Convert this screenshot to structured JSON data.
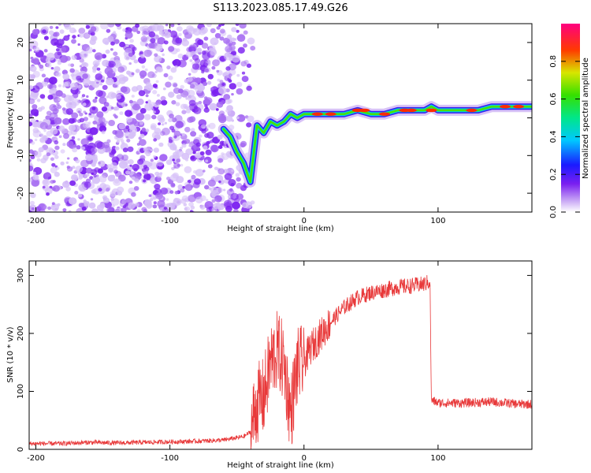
{
  "title": "S113.2023.085.17.49.G26",
  "chart_data": [
    {
      "type": "heatmap",
      "xlabel": "Height of straight line (km)",
      "ylabel": "Frequency (Hz)",
      "xlim": [
        -205,
        170
      ],
      "ylim": [
        -25,
        25
      ],
      "xticks": [
        -200,
        -100,
        0,
        100
      ],
      "yticks": [
        -20,
        -10,
        0,
        10,
        20
      ],
      "noise_region_x": [
        -205,
        -50
      ],
      "ridge": {
        "x": [
          -60,
          -55,
          -50,
          -45,
          -40,
          -35,
          -30,
          -25,
          -20,
          -15,
          -10,
          -5,
          0,
          5,
          10,
          15,
          20,
          30,
          40,
          50,
          60,
          70,
          80,
          90,
          95,
          100,
          110,
          120,
          130,
          140,
          150,
          160,
          170
        ],
        "y": [
          -3,
          -5,
          -9,
          -12,
          -17,
          -2,
          -4,
          -1,
          -2,
          -1,
          1,
          0,
          1,
          1,
          1,
          1,
          1,
          1,
          2,
          1,
          1,
          2,
          2,
          2,
          3,
          2,
          2,
          2,
          2,
          3,
          3,
          3,
          3
        ]
      },
      "colorbar": {
        "label": "Normalized spectral amplitude",
        "ticks": [
          "0.0",
          "0.2",
          "0.4",
          "0.6",
          "0.8"
        ],
        "range": [
          0,
          1
        ]
      }
    },
    {
      "type": "line",
      "xlabel": "Height of straight line (km)",
      "ylabel": "SNR (10 * v/v)",
      "xlim": [
        -205,
        170
      ],
      "ylim": [
        0,
        325
      ],
      "xticks": [
        -200,
        -100,
        0,
        100
      ],
      "yticks": [
        0,
        100,
        200,
        300
      ],
      "series": [
        {
          "color": "#e8393a",
          "x": [
            -205,
            -180,
            -160,
            -140,
            -120,
            -100,
            -80,
            -60,
            -50,
            -45,
            -40,
            -35,
            -30,
            -25,
            -20,
            -15,
            -10,
            -5,
            0,
            5,
            10,
            20,
            30,
            40,
            50,
            60,
            70,
            80,
            90,
            94,
            95,
            100,
            120,
            140,
            160,
            170
          ],
          "values": [
            10,
            10,
            12,
            11,
            12,
            13,
            14,
            16,
            20,
            22,
            30,
            80,
            90,
            150,
            170,
            150,
            60,
            140,
            150,
            175,
            190,
            220,
            245,
            262,
            270,
            275,
            280,
            282,
            285,
            290,
            85,
            80,
            80,
            82,
            78,
            78
          ]
        }
      ]
    }
  ]
}
